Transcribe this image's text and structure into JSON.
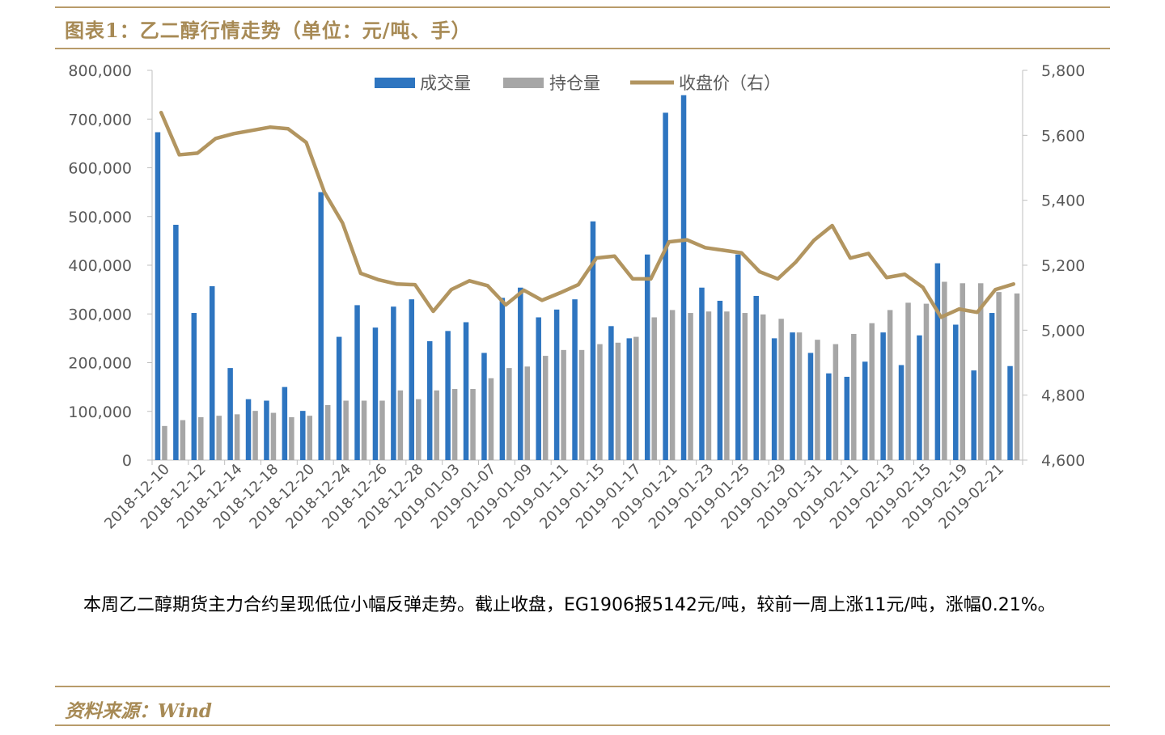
{
  "title": "图表1：乙二醇行情走势（单位：元/吨、手）",
  "paragraph": "本周乙二醇期货主力合约呈现低位小幅反弹走势。截止收盘，EG1906报5142元/吨，较前一周上涨11元/吨，涨幅0.21%。",
  "source": "资料来源：Wind",
  "colors": {
    "volume": "#2e75c0",
    "open_interest": "#a6a6a6",
    "close_price": "#b29560",
    "accent": "#a78a55"
  },
  "chart_data": {
    "type": "bar",
    "legend_position": "top-center",
    "grid": false,
    "x_tick_labels": [
      "2018-12-10",
      "2018-12-12",
      "2018-12-14",
      "2018-12-18",
      "2018-12-20",
      "2018-12-24",
      "2018-12-26",
      "2018-12-28",
      "2019-01-03",
      "2019-01-07",
      "2019-01-09",
      "2019-01-11",
      "2019-01-15",
      "2019-01-17",
      "2019-01-21",
      "2019-01-23",
      "2019-01-25",
      "2019-01-29",
      "2019-01-31",
      "2019-02-11",
      "2019-02-13",
      "2019-02-15",
      "2019-02-19",
      "2019-02-21"
    ],
    "y_left": {
      "ylim": [
        0,
        800000
      ],
      "ticks": [
        "0",
        "100,000",
        "200,000",
        "300,000",
        "400,000",
        "500,000",
        "600,000",
        "700,000",
        "800,000"
      ]
    },
    "y_right": {
      "ylim": [
        4600,
        5800
      ],
      "ticks": [
        "4,600",
        "4,800",
        "5,000",
        "5,200",
        "5,400",
        "5,600",
        "5,800"
      ]
    },
    "series": [
      {
        "name": "成交量",
        "type": "bar",
        "axis": "left",
        "values": [
          673000,
          483000,
          302000,
          357000,
          189000,
          125000,
          122000,
          150000,
          101000,
          550000,
          253000,
          318000,
          272000,
          315000,
          330000,
          244000,
          265000,
          283000,
          220000,
          333000,
          354000,
          293000,
          309000,
          330000,
          490000,
          275000,
          250000,
          422000,
          713000,
          749000,
          354000,
          327000,
          422000,
          337000,
          250000,
          262000,
          220000,
          178000,
          171000,
          202000,
          262000,
          195000,
          256000,
          404000,
          278000,
          184000,
          302000,
          193000
        ]
      },
      {
        "name": "持仓量",
        "type": "bar",
        "axis": "left",
        "values": [
          70000,
          82000,
          88000,
          91000,
          94000,
          101000,
          97000,
          88000,
          91000,
          113000,
          122000,
          122000,
          122000,
          143000,
          125000,
          143000,
          146000,
          146000,
          168000,
          189000,
          192000,
          214000,
          226000,
          226000,
          238000,
          241000,
          253000,
          293000,
          308000,
          302000,
          305000,
          305000,
          302000,
          299000,
          290000,
          262000,
          247000,
          238000,
          259000,
          281000,
          308000,
          323000,
          321000,
          366000,
          363000,
          363000,
          345000,
          342000
        ]
      },
      {
        "name": "收盘价（右）",
        "type": "line",
        "axis": "right",
        "values": [
          5670,
          5540,
          5545,
          5590,
          5605,
          5615,
          5625,
          5620,
          5578,
          5425,
          5330,
          5175,
          5155,
          5142,
          5140,
          5058,
          5125,
          5152,
          5137,
          5078,
          5123,
          5092,
          5115,
          5140,
          5222,
          5228,
          5158,
          5158,
          5272,
          5278,
          5254,
          5246,
          5238,
          5180,
          5158,
          5210,
          5277,
          5322,
          5222,
          5236,
          5162,
          5172,
          5132,
          5040,
          5065,
          5055,
          5125,
          5142
        ]
      }
    ]
  }
}
